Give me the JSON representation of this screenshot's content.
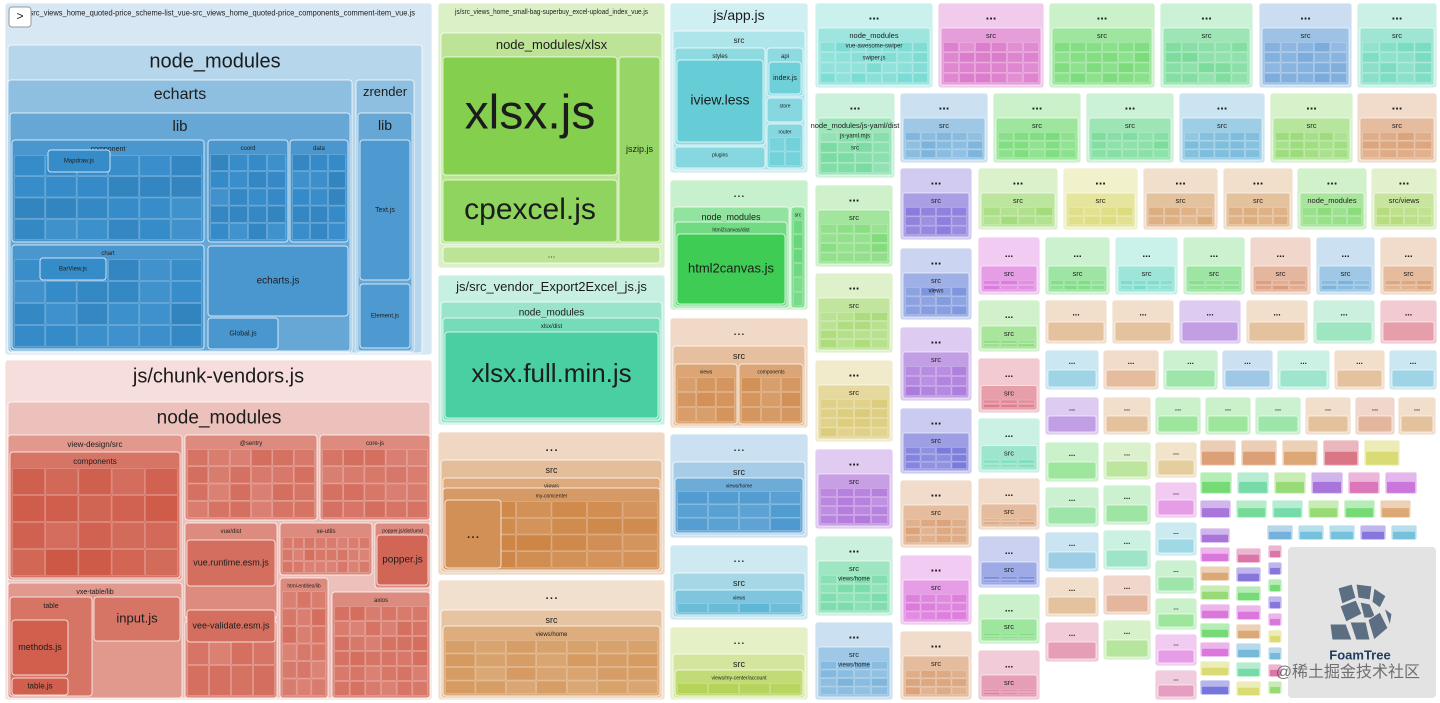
{
  "toggle": ">",
  "groups": [
    {
      "label": "js/src_views_home_quoted-price_scheme-list_vue-src_views_home_quoted-price_components_comment-item_vue.js",
      "children": [
        {
          "label": "node_modules",
          "children": [
            {
              "label": "echarts",
              "children": [
                {
                  "label": "lib",
                  "children": [
                    {
                      "label": "component",
                      "children": [
                        {
                          "label": "Mapdraw.js"
                        }
                      ]
                    },
                    {
                      "label": "coord"
                    },
                    {
                      "label": "data"
                    },
                    {
                      "label": "chart",
                      "children": [
                        {
                          "label": "BarView.js"
                        }
                      ]
                    },
                    {
                      "label": "echarts.js"
                    },
                    {
                      "label": "Global.js"
                    }
                  ]
                }
              ]
            },
            {
              "label": "zrender",
              "children": [
                {
                  "label": "lib",
                  "children": [
                    {
                      "label": "Text.js"
                    },
                    {
                      "label": "Element.js"
                    }
                  ]
                }
              ]
            }
          ]
        }
      ]
    },
    {
      "label": "js/chunk-vendors.js",
      "children": [
        {
          "label": "node_modules",
          "children": [
            {
              "label": "view-design/src",
              "children": [
                {
                  "label": "components"
                }
              ]
            },
            {
              "label": "vxe-table/lib",
              "children": [
                {
                  "label": "table",
                  "children": [
                    {
                      "label": "methods.js"
                    },
                    {
                      "label": "table.js"
                    }
                  ]
                },
                {
                  "label": "input.js"
                }
              ]
            },
            {
              "label": "@sentry"
            },
            {
              "label": "core-js"
            },
            {
              "label": "vue/dist",
              "children": [
                {
                  "label": "vue.runtime.esm.js"
                }
              ]
            },
            {
              "label": "vee-validate/dist",
              "children": [
                {
                  "label": "vee-validate.esm.js"
                }
              ]
            },
            {
              "label": "xe-utils"
            },
            {
              "label": "popper.js/dist/umd",
              "children": [
                {
                  "label": "popper.js"
                }
              ]
            },
            {
              "label": "html-entities/lib"
            },
            {
              "label": "axios"
            }
          ]
        }
      ]
    },
    {
      "label": "js/src_views_home_small-bag-superbuy_excel-upload_index_vue.js",
      "children": [
        {
          "label": "node_modules/xlsx",
          "children": [
            {
              "label": "xlsx.js"
            },
            {
              "label": "cpexcel.js"
            },
            {
              "label": "jszip.js"
            }
          ]
        },
        {
          "label": "..."
        }
      ]
    },
    {
      "label": "js/src_vendor_Export2Excel_js.js",
      "children": [
        {
          "label": "node_modules",
          "children": [
            {
              "label": "xlsx/dist",
              "children": [
                {
                  "label": "xlsx.full.min.js"
                }
              ]
            }
          ]
        }
      ]
    },
    {
      "label": "...",
      "children": [
        {
          "label": "src",
          "children": [
            {
              "label": "views",
              "children": [
                {
                  "label": "my-comcenter",
                  "children": [
                    {
                      "label": "..."
                    }
                  ]
                }
              ]
            }
          ]
        }
      ]
    },
    {
      "label": "...",
      "children": [
        {
          "label": "src",
          "children": [
            {
              "label": "views/home"
            }
          ]
        }
      ]
    },
    {
      "label": "js/app.js",
      "children": [
        {
          "label": "src",
          "children": [
            {
              "label": "styles",
              "children": [
                {
                  "label": "iview.less"
                }
              ]
            },
            {
              "label": "api",
              "children": [
                {
                  "label": "index.js"
                }
              ]
            },
            {
              "label": "store"
            },
            {
              "label": "router"
            },
            {
              "label": "plugins"
            }
          ]
        }
      ]
    },
    {
      "label": "...",
      "children": [
        {
          "label": "node_modules",
          "children": [
            {
              "label": "html2canvas/dist",
              "children": [
                {
                  "label": "html2canvas.js"
                }
              ]
            }
          ]
        },
        {
          "label": "src"
        }
      ]
    },
    {
      "label": "...",
      "children": [
        {
          "label": "src",
          "children": [
            {
              "label": "views"
            },
            {
              "label": "components"
            }
          ]
        }
      ]
    },
    {
      "label": "...",
      "children": [
        {
          "label": "src",
          "children": [
            {
              "label": "views/home"
            }
          ]
        }
      ]
    },
    {
      "label": "...",
      "children": [
        {
          "label": "src",
          "children": [
            {
              "label": "views"
            }
          ]
        }
      ]
    },
    {
      "label": "...",
      "children": [
        {
          "label": "src",
          "children": [
            {
              "label": "views/my-center/account"
            }
          ]
        }
      ]
    }
  ],
  "tiles": [
    {
      "label": "...",
      "children": [
        {
          "label": "node_modules"
        },
        {
          "label": "vue-awesome-swiper"
        },
        {
          "label": "swiper.js"
        }
      ]
    },
    {
      "label": "...",
      "children": [
        {
          "label": "src"
        }
      ]
    },
    {
      "label": "...",
      "children": [
        {
          "label": "src"
        }
      ]
    },
    {
      "label": "...",
      "children": [
        {
          "label": "src"
        }
      ]
    },
    {
      "label": "...",
      "children": [
        {
          "label": "src"
        }
      ]
    },
    {
      "label": "...",
      "children": [
        {
          "label": "src"
        }
      ]
    },
    {
      "label": "...",
      "children": [
        {
          "label": "node_modules/js-yaml/dist"
        },
        {
          "label": "js-yaml.mjs"
        },
        {
          "label": "src"
        }
      ]
    },
    {
      "label": "...",
      "children": [
        {
          "label": "src"
        }
      ]
    },
    {
      "label": "...",
      "children": [
        {
          "label": "src"
        }
      ]
    },
    {
      "label": "...",
      "children": [
        {
          "label": "src"
        }
      ]
    },
    {
      "label": "...",
      "children": [
        {
          "label": "src"
        }
      ]
    },
    {
      "label": "...",
      "children": [
        {
          "label": "src"
        }
      ]
    },
    {
      "label": "...",
      "children": [
        {
          "label": "src"
        }
      ]
    },
    {
      "label": "...",
      "children": [
        {
          "label": "src"
        }
      ]
    },
    {
      "label": "...",
      "children": [
        {
          "label": "src"
        }
      ]
    },
    {
      "label": "...",
      "children": [
        {
          "label": "src"
        }
      ]
    },
    {
      "label": "...",
      "children": [
        {
          "label": "src"
        }
      ]
    },
    {
      "label": "...",
      "children": [
        {
          "label": "src"
        },
        {
          "label": "views/home"
        }
      ]
    },
    {
      "label": "...",
      "children": [
        {
          "label": "src"
        },
        {
          "label": "views/home"
        }
      ]
    },
    {
      "label": "...",
      "children": [
        {
          "label": "src"
        }
      ]
    },
    {
      "label": "...",
      "children": [
        {
          "label": "src"
        },
        {
          "label": "views"
        }
      ]
    },
    {
      "label": "...",
      "children": [
        {
          "label": "src"
        }
      ]
    },
    {
      "label": "...",
      "children": [
        {
          "label": "src"
        }
      ]
    },
    {
      "label": "...",
      "children": [
        {
          "label": "src"
        }
      ]
    },
    {
      "label": "...",
      "children": [
        {
          "label": "src"
        }
      ]
    },
    {
      "label": "...",
      "children": [
        {
          "label": "src"
        }
      ]
    },
    {
      "label": "...",
      "children": [
        {
          "label": "src"
        }
      ]
    },
    {
      "label": "...",
      "children": [
        {
          "label": "src"
        }
      ]
    },
    {
      "label": "...",
      "children": [
        {
          "label": "src"
        }
      ]
    },
    {
      "label": "...",
      "children": [
        {
          "label": "src"
        }
      ]
    },
    {
      "label": "...",
      "children": [
        {
          "label": "node_modules"
        }
      ]
    },
    {
      "label": "...",
      "children": [
        {
          "label": "src/views"
        }
      ]
    },
    {
      "label": "...",
      "children": [
        {
          "label": "src"
        }
      ]
    },
    {
      "label": "...",
      "children": [
        {
          "label": "src"
        }
      ]
    },
    {
      "label": "...",
      "children": [
        {
          "label": "src"
        }
      ]
    },
    {
      "label": "...",
      "children": [
        {
          "label": "src"
        }
      ]
    },
    {
      "label": "...",
      "children": [
        {
          "label": "src"
        }
      ]
    },
    {
      "label": "...",
      "children": [
        {
          "label": "src"
        }
      ]
    },
    {
      "label": "...",
      "children": [
        {
          "label": "src"
        }
      ]
    },
    {
      "label": "...",
      "children": [
        {
          "label": "src"
        }
      ]
    },
    {
      "label": "...",
      "children": [
        {
          "label": "src"
        }
      ]
    },
    {
      "label": "...",
      "children": [
        {
          "label": "src"
        }
      ]
    },
    {
      "label": "...",
      "children": [
        {
          "label": "src"
        }
      ]
    },
    {
      "label": "...",
      "children": [
        {
          "label": "src"
        }
      ]
    },
    {
      "label": "...",
      "children": [
        {
          "label": "src"
        }
      ]
    },
    {
      "label": "...",
      "children": [
        {
          "label": "src"
        }
      ]
    },
    {
      "label": "..."
    },
    {
      "label": "..."
    },
    {
      "label": "..."
    },
    {
      "label": "..."
    },
    {
      "label": "..."
    },
    {
      "label": "..."
    },
    {
      "label": "..."
    },
    {
      "label": "..."
    },
    {
      "label": "..."
    },
    {
      "label": "..."
    },
    {
      "label": "..."
    },
    {
      "label": "..."
    },
    {
      "label": "..."
    },
    {
      "label": "..."
    },
    {
      "label": "..."
    },
    {
      "label": "..."
    },
    {
      "label": "..."
    },
    {
      "label": "..."
    },
    {
      "label": "..."
    },
    {
      "label": "..."
    },
    {
      "label": "..."
    },
    {
      "label": "..."
    },
    {
      "label": "..."
    },
    {
      "label": "..."
    },
    {
      "label": "..."
    },
    {
      "label": "..."
    },
    {
      "label": "..."
    },
    {
      "label": "..."
    },
    {
      "label": "..."
    },
    {
      "label": "..."
    },
    {
      "label": "..."
    },
    {
      "label": "..."
    },
    {
      "label": "..."
    },
    {
      "label": "..."
    },
    {
      "label": "..."
    },
    {
      "label": "..."
    },
    {
      "label": "..."
    },
    {
      "label": "..."
    }
  ],
  "logo": "FoamTree",
  "watermark": "@稀土掘金技术社区"
}
